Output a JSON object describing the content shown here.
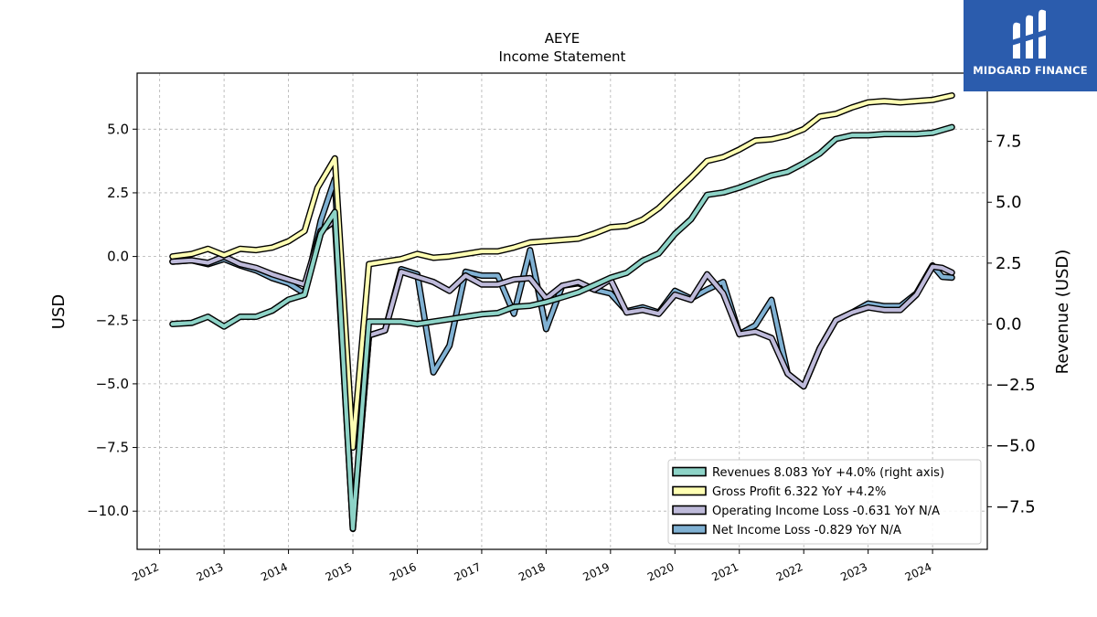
{
  "brand": {
    "name": "MIDGARD FINANCE",
    "bg_color": "#2b5cad"
  },
  "chart_data": {
    "type": "line",
    "title": "AEYE",
    "subtitle": "Income Statement",
    "ylabel": "USD",
    "ylabel_right": "Revenue (USD)",
    "ylim": [
      -11.5,
      7.2
    ],
    "ylim_right": [
      -9.25,
      10.3
    ],
    "yticks": [
      -10.0,
      -7.5,
      -5.0,
      -2.5,
      0.0,
      2.5,
      5.0
    ],
    "yticks_right": [
      -7.5,
      -5.0,
      -2.5,
      0.0,
      2.5,
      5.0,
      7.5
    ],
    "xlim": [
      2011.65,
      2024.85
    ],
    "xticks": [
      2012,
      2013,
      2014,
      2015,
      2016,
      2017,
      2018,
      2019,
      2020,
      2021,
      2022,
      2023,
      2024
    ],
    "grid": true,
    "legend_position": "lower-right",
    "series": [
      {
        "name": "Revenues",
        "legend_label": "Revenues  8.083 YoY +4.0% (right axis)",
        "axis": "right",
        "color": "#8dd3c7",
        "points": [
          [
            2012.2,
            0.0
          ],
          [
            2012.5,
            0.05
          ],
          [
            2012.75,
            0.3
          ],
          [
            2013.0,
            -0.1
          ],
          [
            2013.25,
            0.3
          ],
          [
            2013.5,
            0.3
          ],
          [
            2013.75,
            0.55
          ],
          [
            2014.0,
            1.0
          ],
          [
            2014.25,
            1.2
          ],
          [
            2014.5,
            3.7
          ],
          [
            2014.72,
            4.6
          ],
          [
            2015.0,
            -8.4
          ],
          [
            2015.25,
            0.1
          ],
          [
            2015.5,
            0.1
          ],
          [
            2015.75,
            0.1
          ],
          [
            2016.0,
            0.0
          ],
          [
            2016.25,
            0.1
          ],
          [
            2016.5,
            0.2
          ],
          [
            2016.75,
            0.3
          ],
          [
            2017.0,
            0.4
          ],
          [
            2017.25,
            0.45
          ],
          [
            2017.5,
            0.7
          ],
          [
            2017.75,
            0.75
          ],
          [
            2018.0,
            0.9
          ],
          [
            2018.25,
            1.1
          ],
          [
            2018.5,
            1.3
          ],
          [
            2018.75,
            1.6
          ],
          [
            2019.0,
            1.9
          ],
          [
            2019.25,
            2.1
          ],
          [
            2019.5,
            2.6
          ],
          [
            2019.75,
            2.9
          ],
          [
            2020.0,
            3.7
          ],
          [
            2020.25,
            4.3
          ],
          [
            2020.5,
            5.3
          ],
          [
            2020.75,
            5.4
          ],
          [
            2021.0,
            5.6
          ],
          [
            2021.25,
            5.85
          ],
          [
            2021.5,
            6.1
          ],
          [
            2021.75,
            6.25
          ],
          [
            2022.0,
            6.6
          ],
          [
            2022.25,
            7.0
          ],
          [
            2022.5,
            7.6
          ],
          [
            2022.75,
            7.75
          ],
          [
            2023.0,
            7.75
          ],
          [
            2023.25,
            7.8
          ],
          [
            2023.5,
            7.8
          ],
          [
            2023.75,
            7.8
          ],
          [
            2024.0,
            7.85
          ],
          [
            2024.3,
            8.083
          ]
        ]
      },
      {
        "name": "Gross Profit",
        "legend_label": "Gross Profit  6.322 YoY +4.2%",
        "axis": "left",
        "color": "#ffffb3",
        "points": [
          [
            2012.2,
            0.0
          ],
          [
            2012.5,
            0.1
          ],
          [
            2012.75,
            0.3
          ],
          [
            2013.0,
            0.05
          ],
          [
            2013.25,
            0.3
          ],
          [
            2013.5,
            0.25
          ],
          [
            2013.75,
            0.35
          ],
          [
            2014.0,
            0.6
          ],
          [
            2014.25,
            1.0
          ],
          [
            2014.45,
            2.7
          ],
          [
            2014.72,
            3.85
          ],
          [
            2015.0,
            -7.5
          ],
          [
            2015.25,
            -0.3
          ],
          [
            2015.5,
            -0.2
          ],
          [
            2015.75,
            -0.1
          ],
          [
            2016.0,
            0.1
          ],
          [
            2016.25,
            -0.05
          ],
          [
            2016.5,
            0.0
          ],
          [
            2016.75,
            0.1
          ],
          [
            2017.0,
            0.2
          ],
          [
            2017.25,
            0.2
          ],
          [
            2017.5,
            0.35
          ],
          [
            2017.75,
            0.55
          ],
          [
            2018.0,
            0.6
          ],
          [
            2018.25,
            0.65
          ],
          [
            2018.5,
            0.7
          ],
          [
            2018.75,
            0.9
          ],
          [
            2019.0,
            1.15
          ],
          [
            2019.25,
            1.2
          ],
          [
            2019.5,
            1.45
          ],
          [
            2019.75,
            1.9
          ],
          [
            2020.0,
            2.5
          ],
          [
            2020.25,
            3.1
          ],
          [
            2020.5,
            3.75
          ],
          [
            2020.75,
            3.9
          ],
          [
            2021.0,
            4.2
          ],
          [
            2021.25,
            4.55
          ],
          [
            2021.5,
            4.6
          ],
          [
            2021.75,
            4.75
          ],
          [
            2022.0,
            5.0
          ],
          [
            2022.25,
            5.5
          ],
          [
            2022.5,
            5.6
          ],
          [
            2022.75,
            5.85
          ],
          [
            2023.0,
            6.05
          ],
          [
            2023.25,
            6.1
          ],
          [
            2023.5,
            6.05
          ],
          [
            2023.75,
            6.1
          ],
          [
            2024.0,
            6.15
          ],
          [
            2024.3,
            6.322
          ]
        ]
      },
      {
        "name": "Operating Income Loss",
        "legend_label": "Operating Income Loss  -0.631 YoY N/A",
        "axis": "left",
        "color": "#bebada",
        "points": [
          [
            2012.2,
            -0.2
          ],
          [
            2012.5,
            -0.15
          ],
          [
            2012.75,
            -0.25
          ],
          [
            2013.0,
            0.0
          ],
          [
            2013.25,
            -0.3
          ],
          [
            2013.5,
            -0.45
          ],
          [
            2013.75,
            -0.7
          ],
          [
            2014.0,
            -0.9
          ],
          [
            2014.25,
            -1.1
          ],
          [
            2014.5,
            1.0
          ],
          [
            2014.72,
            1.4
          ],
          [
            2015.0,
            -10.6
          ],
          [
            2015.25,
            -3.1
          ],
          [
            2015.5,
            -2.9
          ],
          [
            2015.75,
            -0.6
          ],
          [
            2016.0,
            -0.8
          ],
          [
            2016.25,
            -1.0
          ],
          [
            2016.5,
            -1.35
          ],
          [
            2016.75,
            -0.75
          ],
          [
            2017.0,
            -1.1
          ],
          [
            2017.25,
            -1.1
          ],
          [
            2017.5,
            -0.9
          ],
          [
            2017.75,
            -0.85
          ],
          [
            2018.0,
            -1.65
          ],
          [
            2018.25,
            -1.15
          ],
          [
            2018.5,
            -1.0
          ],
          [
            2018.75,
            -1.3
          ],
          [
            2019.0,
            -0.9
          ],
          [
            2019.25,
            -2.2
          ],
          [
            2019.5,
            -2.1
          ],
          [
            2019.75,
            -2.25
          ],
          [
            2020.0,
            -1.5
          ],
          [
            2020.25,
            -1.7
          ],
          [
            2020.5,
            -0.7
          ],
          [
            2020.75,
            -1.45
          ],
          [
            2021.0,
            -3.05
          ],
          [
            2021.25,
            -2.95
          ],
          [
            2021.5,
            -3.2
          ],
          [
            2021.75,
            -4.6
          ],
          [
            2022.0,
            -5.1
          ],
          [
            2022.25,
            -3.6
          ],
          [
            2022.5,
            -2.5
          ],
          [
            2022.75,
            -2.2
          ],
          [
            2023.0,
            -2.0
          ],
          [
            2023.25,
            -2.1
          ],
          [
            2023.5,
            -2.1
          ],
          [
            2023.75,
            -1.5
          ],
          [
            2024.0,
            -0.4
          ],
          [
            2024.15,
            -0.45
          ],
          [
            2024.3,
            -0.631
          ]
        ]
      },
      {
        "name": "Net Income Loss",
        "legend_label": "Net Income Loss  -0.829 YoY N/A",
        "axis": "left",
        "color": "#80b1d3",
        "points": [
          [
            2012.2,
            -0.2
          ],
          [
            2012.5,
            -0.15
          ],
          [
            2012.75,
            -0.3
          ],
          [
            2013.0,
            -0.1
          ],
          [
            2013.25,
            -0.35
          ],
          [
            2013.5,
            -0.55
          ],
          [
            2013.75,
            -0.85
          ],
          [
            2014.0,
            -1.05
          ],
          [
            2014.25,
            -1.45
          ],
          [
            2014.5,
            1.4
          ],
          [
            2014.72,
            3.05
          ],
          [
            2015.0,
            -10.7
          ],
          [
            2015.25,
            -3.1
          ],
          [
            2015.5,
            -2.9
          ],
          [
            2015.75,
            -0.5
          ],
          [
            2016.0,
            -0.7
          ],
          [
            2016.25,
            -4.55
          ],
          [
            2016.5,
            -3.5
          ],
          [
            2016.75,
            -0.6
          ],
          [
            2017.0,
            -0.75
          ],
          [
            2017.25,
            -0.75
          ],
          [
            2017.5,
            -2.25
          ],
          [
            2017.75,
            0.25
          ],
          [
            2018.0,
            -2.85
          ],
          [
            2018.25,
            -1.15
          ],
          [
            2018.5,
            -1.05
          ],
          [
            2018.75,
            -1.3
          ],
          [
            2019.0,
            -1.45
          ],
          [
            2019.25,
            -2.15
          ],
          [
            2019.5,
            -2.0
          ],
          [
            2019.75,
            -2.2
          ],
          [
            2020.0,
            -1.35
          ],
          [
            2020.25,
            -1.65
          ],
          [
            2020.5,
            -1.3
          ],
          [
            2020.75,
            -1.0
          ],
          [
            2021.0,
            -3.05
          ],
          [
            2021.25,
            -2.7
          ],
          [
            2021.5,
            -1.7
          ],
          [
            2021.75,
            -4.6
          ],
          [
            2022.0,
            -5.1
          ],
          [
            2022.25,
            -3.6
          ],
          [
            2022.5,
            -2.5
          ],
          [
            2022.75,
            -2.2
          ],
          [
            2023.0,
            -1.85
          ],
          [
            2023.25,
            -1.95
          ],
          [
            2023.5,
            -1.95
          ],
          [
            2023.75,
            -1.45
          ],
          [
            2024.0,
            -0.35
          ],
          [
            2024.15,
            -0.8
          ],
          [
            2024.3,
            -0.829
          ]
        ]
      }
    ]
  }
}
